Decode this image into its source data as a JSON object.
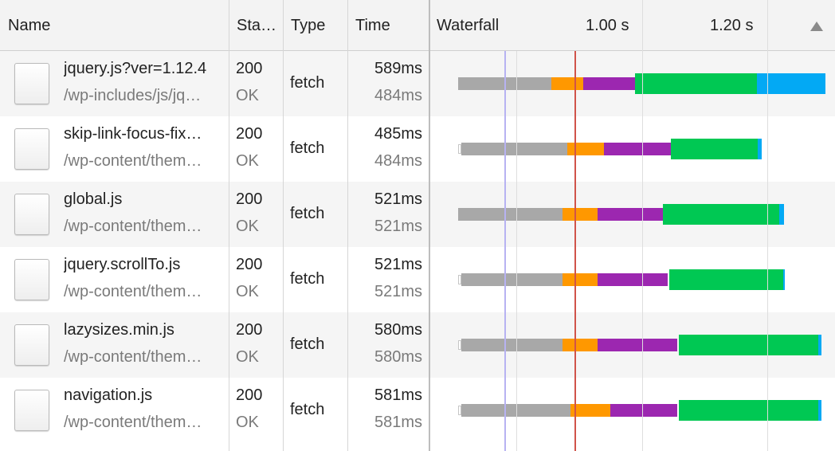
{
  "columns": {
    "name": "Name",
    "status": "Sta…",
    "type": "Type",
    "time": "Time",
    "waterfall": "Waterfall",
    "tick1": "1.00 s",
    "tick2": "1.20 s"
  },
  "colors": {
    "queueing": "#a8a8a8",
    "dns_connect": "#ff9800",
    "ssl": "#9c27b0",
    "waiting": "#00c853",
    "download": "#03a9f4",
    "dom_content_loaded": "#b7b2f2",
    "load": "#d0534a"
  },
  "rows": [
    {
      "name": "jquery.js?ver=1.12.4",
      "path": "/wp-includes/js/jq…",
      "status_code": "200",
      "status_text": "OK",
      "type": "fetch",
      "time": "589ms",
      "latency": "484ms"
    },
    {
      "name": "skip-link-focus-fix…",
      "path": "/wp-content/them…",
      "status_code": "200",
      "status_text": "OK",
      "type": "fetch",
      "time": "485ms",
      "latency": "484ms"
    },
    {
      "name": "global.js",
      "path": "/wp-content/them…",
      "status_code": "200",
      "status_text": "OK",
      "type": "fetch",
      "time": "521ms",
      "latency": "521ms"
    },
    {
      "name": "jquery.scrollTo.js",
      "path": "/wp-content/them…",
      "status_code": "200",
      "status_text": "OK",
      "type": "fetch",
      "time": "521ms",
      "latency": "521ms"
    },
    {
      "name": "lazysizes.min.js",
      "path": "/wp-content/them…",
      "status_code": "200",
      "status_text": "OK",
      "type": "fetch",
      "time": "580ms",
      "latency": "580ms"
    },
    {
      "name": "navigation.js",
      "path": "/wp-content/them…",
      "status_code": "200",
      "status_text": "OK",
      "type": "fetch",
      "time": "581ms",
      "latency": "581ms"
    }
  ]
}
